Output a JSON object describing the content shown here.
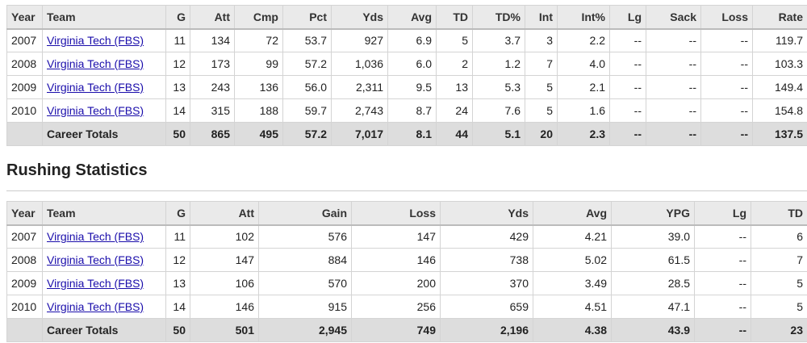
{
  "passing": {
    "columns": [
      "Year",
      "Team",
      "G",
      "Att",
      "Cmp",
      "Pct",
      "Yds",
      "Avg",
      "TD",
      "TD%",
      "Int",
      "Int%",
      "Lg",
      "Sack",
      "Loss",
      "Rate"
    ],
    "rows": [
      [
        "2007",
        "Virginia Tech (FBS)",
        "11",
        "134",
        "72",
        "53.7",
        "927",
        "6.9",
        "5",
        "3.7",
        "3",
        "2.2",
        "--",
        "--",
        "--",
        "119.7"
      ],
      [
        "2008",
        "Virginia Tech (FBS)",
        "12",
        "173",
        "99",
        "57.2",
        "1,036",
        "6.0",
        "2",
        "1.2",
        "7",
        "4.0",
        "--",
        "--",
        "--",
        "103.3"
      ],
      [
        "2009",
        "Virginia Tech (FBS)",
        "13",
        "243",
        "136",
        "56.0",
        "2,311",
        "9.5",
        "13",
        "5.3",
        "5",
        "2.1",
        "--",
        "--",
        "--",
        "149.4"
      ],
      [
        "2010",
        "Virginia Tech (FBS)",
        "14",
        "315",
        "188",
        "59.7",
        "2,743",
        "8.7",
        "24",
        "7.6",
        "5",
        "1.6",
        "--",
        "--",
        "--",
        "154.8"
      ]
    ],
    "totals": {
      "label": "Career Totals",
      "values": [
        "50",
        "865",
        "495",
        "57.2",
        "7,017",
        "8.1",
        "44",
        "5.1",
        "20",
        "2.3",
        "--",
        "--",
        "--",
        "137.5"
      ]
    }
  },
  "rushing": {
    "title": "Rushing Statistics",
    "columns": [
      "Year",
      "Team",
      "G",
      "Att",
      "Gain",
      "Loss",
      "Yds",
      "Avg",
      "YPG",
      "Lg",
      "TD"
    ],
    "rows": [
      [
        "2007",
        "Virginia Tech (FBS)",
        "11",
        "102",
        "576",
        "147",
        "429",
        "4.21",
        "39.0",
        "--",
        "6"
      ],
      [
        "2008",
        "Virginia Tech (FBS)",
        "12",
        "147",
        "884",
        "146",
        "738",
        "5.02",
        "61.5",
        "--",
        "7"
      ],
      [
        "2009",
        "Virginia Tech (FBS)",
        "13",
        "106",
        "570",
        "200",
        "370",
        "3.49",
        "28.5",
        "--",
        "5"
      ],
      [
        "2010",
        "Virginia Tech (FBS)",
        "14",
        "146",
        "915",
        "256",
        "659",
        "4.51",
        "47.1",
        "--",
        "5"
      ]
    ],
    "totals": {
      "label": "Career Totals",
      "values": [
        "50",
        "501",
        "2,945",
        "749",
        "2,196",
        "4.38",
        "43.9",
        "--",
        "23"
      ]
    }
  }
}
